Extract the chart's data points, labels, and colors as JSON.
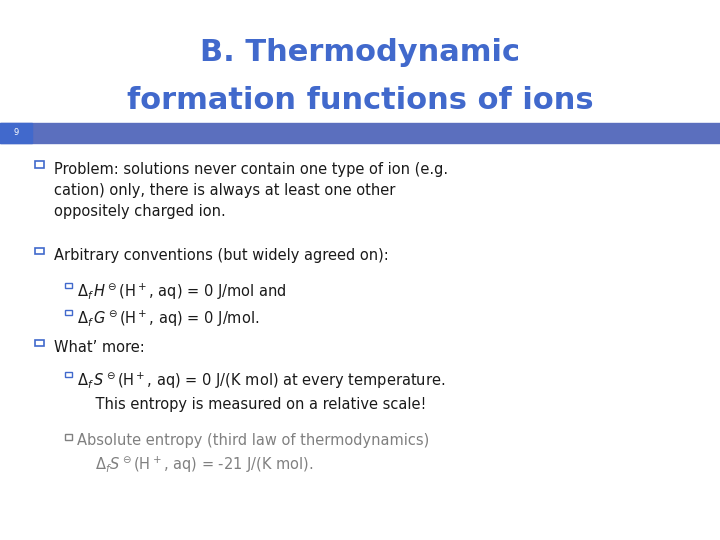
{
  "title_line1": "B. Thermodynamic",
  "title_line2": "formation functions of ions",
  "title_color": "#4169CC",
  "slide_number": "9",
  "header_bar_color": "#5B6FBE",
  "slide_number_bg": "#4169CC",
  "background_color": "#FFFFFF",
  "bullet_color": "#4169CC",
  "bullet_char": "□",
  "sub_bullet_char": "□",
  "text_color": "#1A1A1A",
  "gray_text_color": "#808080",
  "bullet1": "Problem: solutions never contain one type of ion (e.g.\ncation) only, there is always at least one other\noppositely charged ion.",
  "bullet2": "Arbitrary conventions (but widely agreed on):",
  "sub1a": "□Δₓ Hᵒ(H⁺, aq) = 0 J/mol and",
  "sub1b": "□Δₓ Gᵒ(H⁺, aq) = 0 J/mol.",
  "bullet3": "What’ more:",
  "sub2a": "□Δₓ Sᵒ(H⁺, aq) = 0 J/(K mol) at every temperature.\n    This entropy is measured on a relative scale!",
  "sub2b_gray": "□Absolute entropy (third law of thermodynamics)\n    ΔₓSᵒ(H⁺, aq) = -21 J/(K mol).",
  "figsize": [
    7.2,
    5.4
  ],
  "dpi": 100
}
